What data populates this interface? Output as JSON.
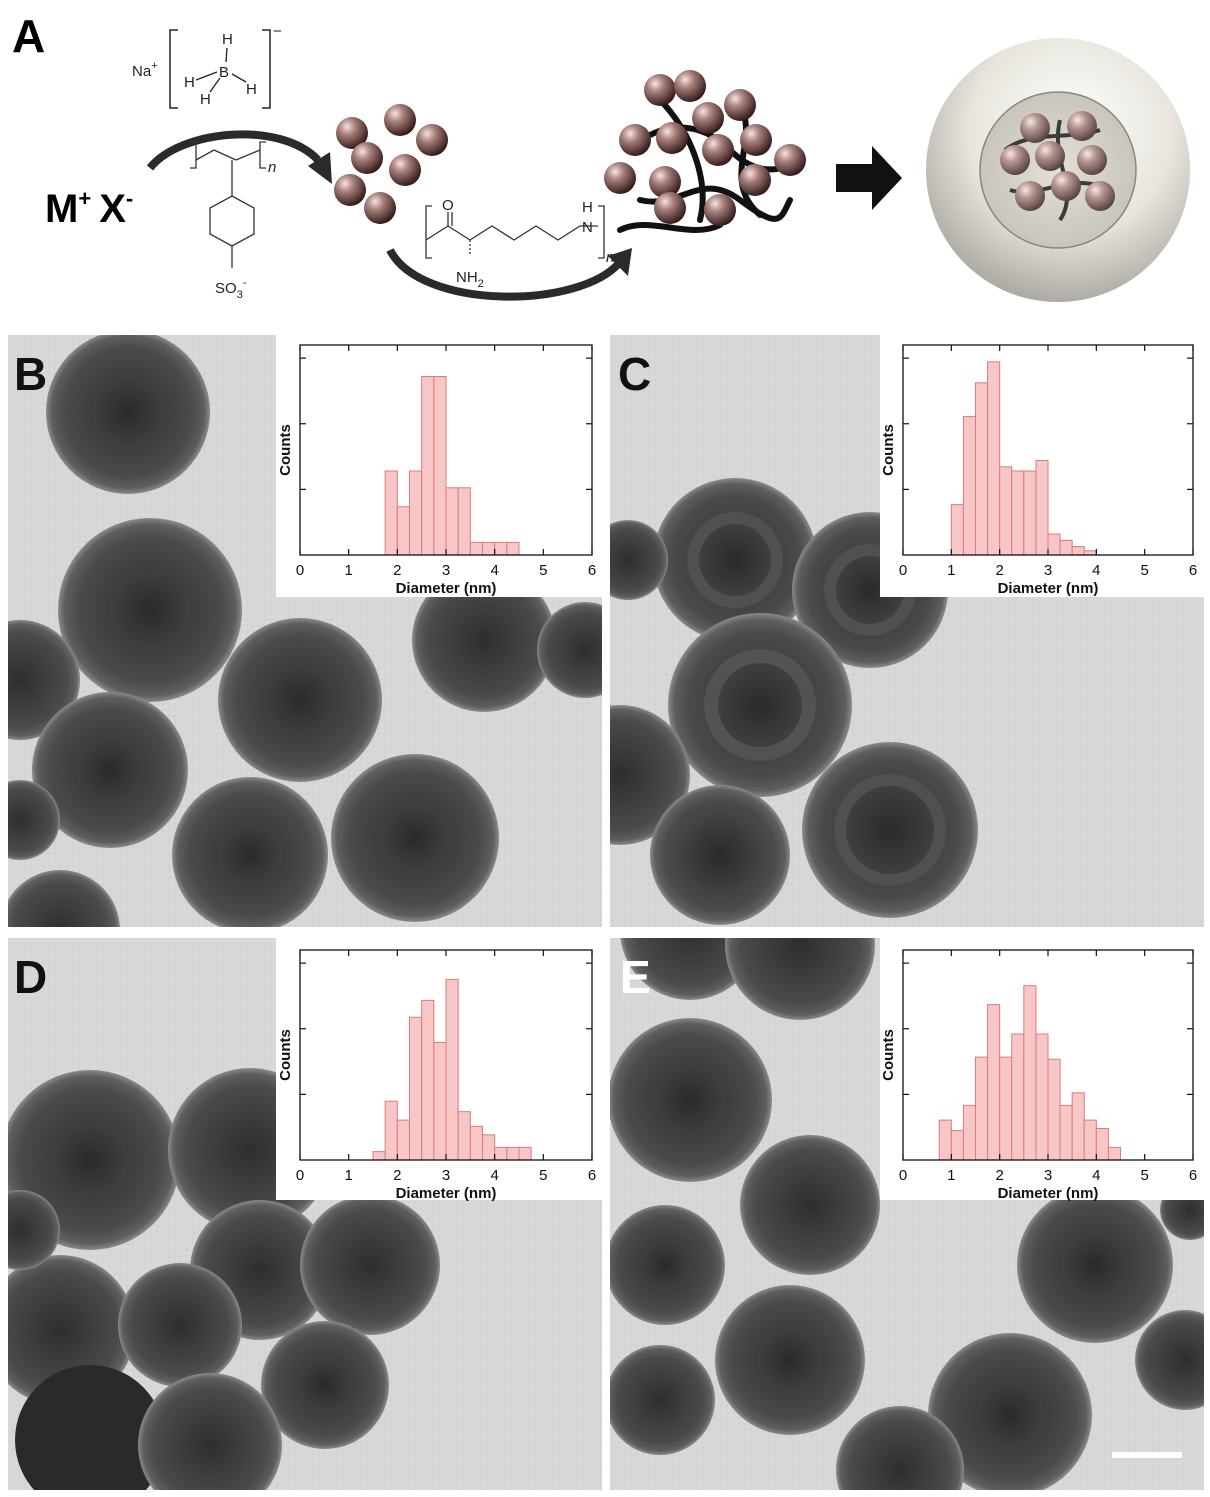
{
  "figure": {
    "panel_labels": [
      "A",
      "B",
      "C",
      "D",
      "E"
    ],
    "scheme": {
      "reactant_text": "M",
      "reactant_cation_sup": "+",
      "reactant_anion": "X",
      "reactant_anion_sup": "-",
      "reductant_cation": "Na",
      "reductant_cation_sup": "+",
      "reductant_atoms": [
        "H",
        "B",
        "H",
        "H",
        "H"
      ],
      "reductant_charge": "−",
      "polymer1_repeat": "n",
      "polymer1_group": "SO",
      "polymer1_group_sub": "3",
      "polymer1_group_sup": "-",
      "polymer2_o": "O",
      "polymer2_nh2": "NH",
      "polymer2_nh2_sub": "2",
      "polymer2_nh": "H",
      "polymer2_n": "N",
      "polymer2_repeat": "n"
    }
  },
  "chart_data": [
    {
      "panel": "B",
      "type": "bar",
      "xlabel": "Diameter (nm)",
      "ylabel": "Counts",
      "xlim": [
        0,
        6
      ],
      "xticks": [
        "0",
        "1",
        "2",
        "3",
        "4",
        "5",
        "6"
      ],
      "ylim": [
        0,
        10
      ],
      "bin_width": 0.25,
      "x": [
        1.75,
        2.0,
        2.25,
        2.5,
        2.75,
        3.0,
        3.25,
        3.5,
        3.75,
        4.0,
        4.25
      ],
      "values": [
        4,
        2.3,
        4,
        8.5,
        8.5,
        3.2,
        3.2,
        0.6,
        0.6,
        0.6,
        0.6
      ]
    },
    {
      "panel": "C",
      "type": "bar",
      "xlabel": "Diameter (nm)",
      "ylabel": "Counts",
      "xlim": [
        0,
        6
      ],
      "xticks": [
        "0",
        "1",
        "2",
        "3",
        "4",
        "5",
        "6"
      ],
      "ylim": [
        0,
        10
      ],
      "bin_width": 0.25,
      "x": [
        1.0,
        1.25,
        1.5,
        1.75,
        2.0,
        2.25,
        2.5,
        2.75,
        3.0,
        3.25,
        3.5,
        3.75
      ],
      "values": [
        2.4,
        6.6,
        8.2,
        9.2,
        4.2,
        4.0,
        4.0,
        4.5,
        1.0,
        0.7,
        0.4,
        0.2
      ]
    },
    {
      "panel": "D",
      "type": "bar",
      "xlabel": "Diameter (nm)",
      "ylabel": "Counts",
      "xlim": [
        0,
        6
      ],
      "xticks": [
        "0",
        "1",
        "2",
        "3",
        "4",
        "5",
        "6"
      ],
      "ylim": [
        0,
        10
      ],
      "bin_width": 0.25,
      "x": [
        1.5,
        1.75,
        2.0,
        2.25,
        2.5,
        2.75,
        3.0,
        3.25,
        3.5,
        3.75,
        4.0,
        4.25,
        4.5
      ],
      "values": [
        0.4,
        2.8,
        1.9,
        6.8,
        7.6,
        5.6,
        8.6,
        2.3,
        1.6,
        1.2,
        0.6,
        0.6,
        0.6
      ]
    },
    {
      "panel": "E",
      "type": "bar",
      "xlabel": "Diameter (nm)",
      "ylabel": "Counts",
      "xlim": [
        0,
        6
      ],
      "xticks": [
        "0",
        "1",
        "2",
        "3",
        "4",
        "5",
        "6"
      ],
      "ylim": [
        0,
        10
      ],
      "bin_width": 0.25,
      "x": [
        0.75,
        1.0,
        1.25,
        1.5,
        1.75,
        2.0,
        2.25,
        2.5,
        2.75,
        3.0,
        3.25,
        3.5,
        3.75,
        4.0,
        4.25
      ],
      "values": [
        1.9,
        1.4,
        2.6,
        4.9,
        7.4,
        4.9,
        6.0,
        8.3,
        6.0,
        4.8,
        2.6,
        3.2,
        1.9,
        1.5,
        0.6
      ]
    }
  ]
}
